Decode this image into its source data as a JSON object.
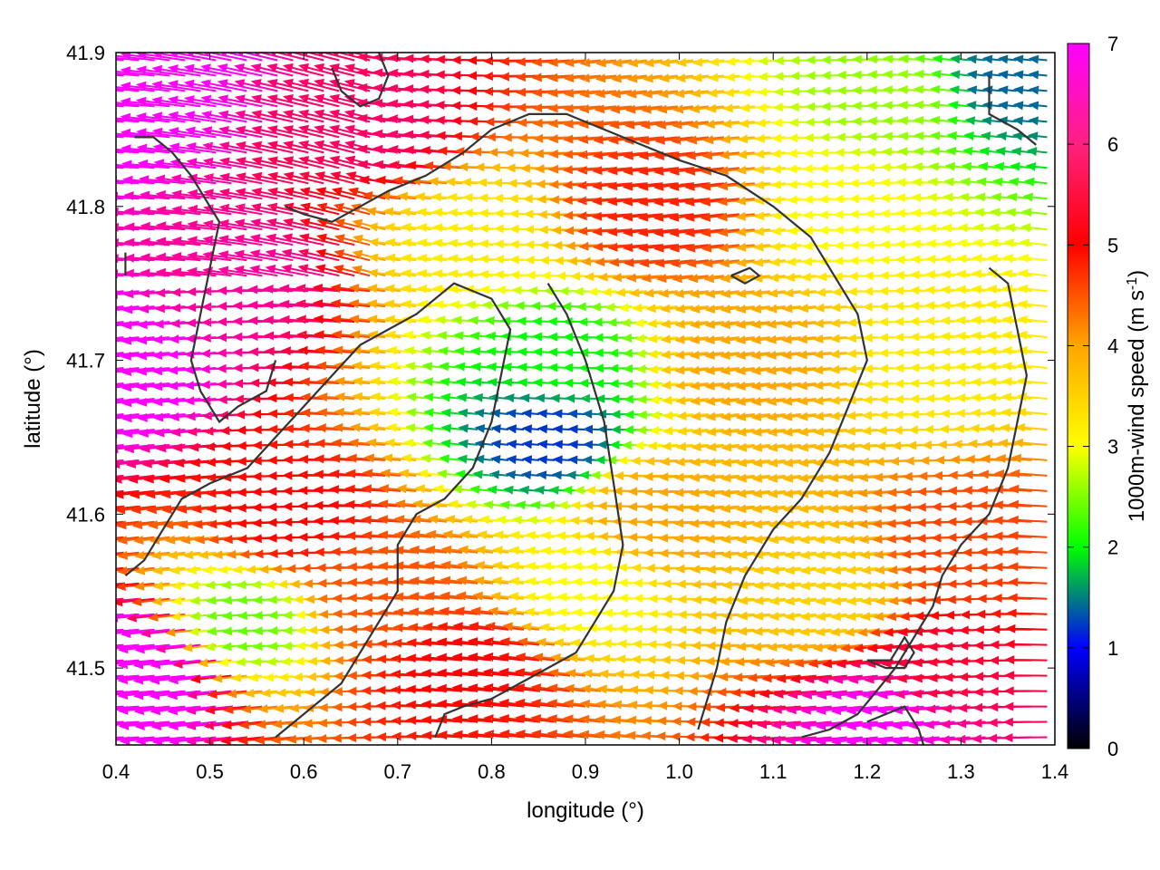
{
  "chart_data": {
    "type": "vector-field",
    "title": "",
    "xlabel": "longitude (°)",
    "ylabel": "latitude (°)",
    "xlim": [
      0.4,
      1.4
    ],
    "ylim": [
      41.45,
      41.9
    ],
    "x_ticks": [
      "0.4",
      "0.5",
      "0.6",
      "0.7",
      "0.8",
      "0.9",
      "1.0",
      "1.1",
      "1.2",
      "1.3",
      "1.4"
    ],
    "y_ticks": [
      "41.5",
      "41.6",
      "41.7",
      "41.8",
      "41.9"
    ],
    "colorbar": {
      "label": "1000m-wind speed (m s",
      "label_sup": "-1",
      "label_end": ")",
      "range": [
        0,
        7
      ],
      "ticks": [
        "0",
        "1",
        "2",
        "3",
        "4",
        "5",
        "6",
        "7"
      ],
      "colors": [
        "#000000",
        "#0000ff",
        "#00ff00",
        "#ffff00",
        "#ffa500",
        "#ff0000",
        "#ff00ff"
      ]
    },
    "grid": "dotted, white",
    "arrow_direction": "mostly westward (pointing left)",
    "speed_regions": [
      {
        "lon": 0.42,
        "lat": 41.88,
        "speed": 6.4
      },
      {
        "lon": 0.45,
        "lat": 41.5,
        "speed": 6.8
      },
      {
        "lon": 0.43,
        "lat": 41.7,
        "speed": 6.2
      },
      {
        "lon": 0.55,
        "lat": 41.75,
        "speed": 5.6
      },
      {
        "lon": 0.62,
        "lat": 41.6,
        "speed": 5.0
      },
      {
        "lon": 0.7,
        "lat": 41.85,
        "speed": 5.4
      },
      {
        "lon": 0.72,
        "lat": 41.55,
        "speed": 4.5
      },
      {
        "lon": 0.88,
        "lat": 41.7,
        "speed": 2.0
      },
      {
        "lon": 0.87,
        "lat": 41.65,
        "speed": 1.2
      },
      {
        "lon": 0.8,
        "lat": 41.78,
        "speed": 3.2
      },
      {
        "lon": 1.0,
        "lat": 41.8,
        "speed": 4.8
      },
      {
        "lon": 1.1,
        "lat": 41.7,
        "speed": 4.0
      },
      {
        "lon": 1.2,
        "lat": 41.8,
        "speed": 3.0
      },
      {
        "lon": 1.25,
        "lat": 41.87,
        "speed": 2.6
      },
      {
        "lon": 1.36,
        "lat": 41.88,
        "speed": 1.4
      },
      {
        "lon": 1.3,
        "lat": 41.7,
        "speed": 3.2
      },
      {
        "lon": 1.33,
        "lat": 41.58,
        "speed": 4.6
      },
      {
        "lon": 1.3,
        "lat": 41.5,
        "speed": 5.2
      },
      {
        "lon": 1.18,
        "lat": 41.55,
        "speed": 3.5
      },
      {
        "lon": 1.0,
        "lat": 41.6,
        "speed": 4.0
      },
      {
        "lon": 0.55,
        "lat": 41.53,
        "speed": 2.4
      },
      {
        "lon": 0.92,
        "lat": 41.55,
        "speed": 3.0
      },
      {
        "lon": 1.25,
        "lat": 41.47,
        "speed": 6.0
      },
      {
        "lon": 0.8,
        "lat": 41.5,
        "speed": 5.0
      }
    ],
    "contours": [
      [
        [
          0.41,
          41.755
        ],
        [
          0.41,
          41.77
        ]
      ],
      [
        [
          0.42,
          41.845
        ],
        [
          0.44,
          41.845
        ],
        [
          0.46,
          41.835
        ],
        [
          0.48,
          41.82
        ],
        [
          0.5,
          41.8
        ],
        [
          0.51,
          41.79
        ],
        [
          0.5,
          41.76
        ],
        [
          0.49,
          41.73
        ],
        [
          0.48,
          41.7
        ],
        [
          0.49,
          41.68
        ],
        [
          0.51,
          41.66
        ],
        [
          0.53,
          41.67
        ],
        [
          0.56,
          41.68
        ],
        [
          0.57,
          41.7
        ]
      ],
      [
        [
          0.58,
          41.8
        ],
        [
          0.6,
          41.795
        ],
        [
          0.63,
          41.79
        ],
        [
          0.66,
          41.8
        ],
        [
          0.69,
          41.81
        ],
        [
          0.73,
          41.82
        ],
        [
          0.77,
          41.835
        ],
        [
          0.8,
          41.85
        ],
        [
          0.84,
          41.86
        ],
        [
          0.88,
          41.86
        ],
        [
          0.92,
          41.85
        ],
        [
          0.96,
          41.84
        ],
        [
          1.0,
          41.83
        ],
        [
          1.05,
          41.82
        ],
        [
          1.1,
          41.8
        ],
        [
          1.14,
          41.78
        ],
        [
          1.17,
          41.75
        ],
        [
          1.19,
          41.73
        ],
        [
          1.2,
          41.7
        ],
        [
          1.18,
          41.67
        ],
        [
          1.16,
          41.64
        ],
        [
          1.13,
          41.61
        ],
        [
          1.1,
          41.59
        ],
        [
          1.07,
          41.56
        ],
        [
          1.05,
          41.53
        ],
        [
          1.04,
          41.5
        ],
        [
          1.03,
          41.48
        ],
        [
          1.02,
          41.46
        ]
      ],
      [
        [
          0.41,
          41.56
        ],
        [
          0.43,
          41.57
        ],
        [
          0.45,
          41.59
        ],
        [
          0.47,
          41.61
        ],
        [
          0.5,
          41.62
        ],
        [
          0.54,
          41.63
        ],
        [
          0.57,
          41.65
        ],
        [
          0.6,
          41.67
        ],
        [
          0.63,
          41.69
        ],
        [
          0.66,
          41.71
        ],
        [
          0.69,
          41.72
        ],
        [
          0.72,
          41.73
        ],
        [
          0.76,
          41.75
        ],
        [
          0.8,
          41.74
        ],
        [
          0.82,
          41.72
        ],
        [
          0.81,
          41.69
        ],
        [
          0.8,
          41.66
        ],
        [
          0.78,
          41.63
        ],
        [
          0.75,
          41.61
        ],
        [
          0.72,
          41.6
        ],
        [
          0.7,
          41.58
        ],
        [
          0.7,
          41.55
        ],
        [
          0.68,
          41.53
        ],
        [
          0.66,
          41.51
        ],
        [
          0.64,
          41.49
        ],
        [
          0.6,
          41.47
        ],
        [
          0.57,
          41.455
        ]
      ],
      [
        [
          0.86,
          41.75
        ],
        [
          0.88,
          41.73
        ],
        [
          0.9,
          41.7
        ],
        [
          0.92,
          41.66
        ],
        [
          0.93,
          41.62
        ],
        [
          0.94,
          41.58
        ],
        [
          0.93,
          41.55
        ],
        [
          0.91,
          41.53
        ],
        [
          0.89,
          41.51
        ],
        [
          0.86,
          41.5
        ],
        [
          0.83,
          41.49
        ],
        [
          0.8,
          41.48
        ],
        [
          0.77,
          41.475
        ],
        [
          0.75,
          41.47
        ],
        [
          0.74,
          41.455
        ]
      ],
      [
        [
          1.33,
          41.76
        ],
        [
          1.35,
          41.75
        ],
        [
          1.36,
          41.72
        ],
        [
          1.37,
          41.69
        ],
        [
          1.36,
          41.66
        ],
        [
          1.35,
          41.63
        ],
        [
          1.33,
          41.6
        ],
        [
          1.3,
          41.58
        ],
        [
          1.28,
          41.56
        ],
        [
          1.27,
          41.54
        ],
        [
          1.25,
          41.52
        ],
        [
          1.23,
          41.5
        ],
        [
          1.21,
          41.485
        ],
        [
          1.19,
          41.47
        ],
        [
          1.16,
          41.46
        ],
        [
          1.13,
          41.455
        ]
      ],
      [
        [
          1.055,
          41.755
        ],
        [
          1.075,
          41.76
        ],
        [
          1.085,
          41.755
        ],
        [
          1.07,
          41.75
        ],
        [
          1.055,
          41.755
        ]
      ],
      [
        [
          1.2,
          41.505
        ],
        [
          1.225,
          41.505
        ],
        [
          1.24,
          41.52
        ],
        [
          1.25,
          41.51
        ],
        [
          1.24,
          41.5
        ],
        [
          1.22,
          41.5
        ],
        [
          1.2,
          41.505
        ]
      ],
      [
        [
          1.33,
          41.885
        ],
        [
          1.33,
          41.86
        ],
        [
          1.36,
          41.85
        ],
        [
          1.38,
          41.84
        ]
      ],
      [
        [
          0.63,
          41.89
        ],
        [
          0.64,
          41.875
        ],
        [
          0.66,
          41.865
        ],
        [
          0.68,
          41.87
        ],
        [
          0.69,
          41.885
        ],
        [
          0.68,
          41.9
        ]
      ],
      [
        [
          1.2,
          41.465
        ],
        [
          1.22,
          41.47
        ],
        [
          1.24,
          41.475
        ],
        [
          1.255,
          41.46
        ],
        [
          1.26,
          41.45
        ]
      ]
    ]
  }
}
